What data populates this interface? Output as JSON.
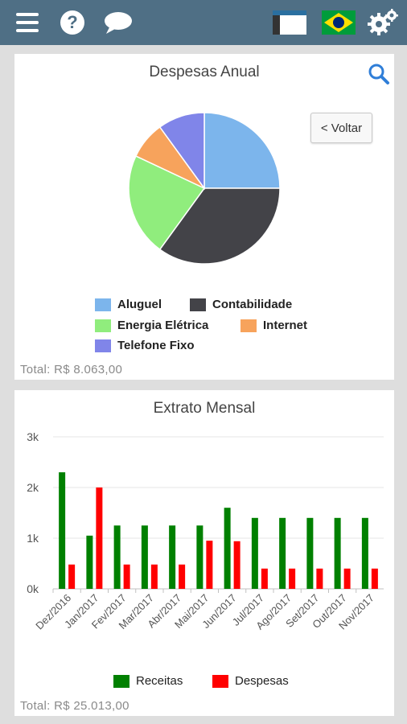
{
  "topbar": {
    "icons": [
      "menu-icon",
      "help-icon",
      "chat-icon",
      "window-icon",
      "brazil-flag-icon",
      "settings-icon"
    ]
  },
  "despesas_card": {
    "title": "Despesas Anual",
    "back_label": "< Voltar",
    "total": "Total: R$ 8.063,00",
    "chart_data": {
      "type": "pie",
      "title": "Despesas Anual",
      "slices": [
        {
          "label": "Aluguel",
          "value": 25,
          "color": "#7cb5ec"
        },
        {
          "label": "Contabilidade",
          "value": 35,
          "color": "#434348"
        },
        {
          "label": "Energia Elétrica",
          "value": 22,
          "color": "#90ed7d"
        },
        {
          "label": "Internet",
          "value": 8,
          "color": "#f7a35c"
        },
        {
          "label": "Telefone Fixo",
          "value": 10,
          "color": "#8085e9"
        }
      ]
    }
  },
  "extrato_card": {
    "title": "Extrato Mensal",
    "total": "Total: R$ 25.013,00",
    "chart_data": {
      "type": "bar",
      "title": "Extrato Mensal",
      "categories": [
        "Dez/2016",
        "Jan/2017",
        "Fev/2017",
        "Mar/2017",
        "Abr/2017",
        "Mai/2017",
        "Jun/2017",
        "Jul/2017",
        "Ago/2017",
        "Set/2017",
        "Out/2017",
        "Nov/2017"
      ],
      "series": [
        {
          "name": "Receitas",
          "color": "#008000",
          "values": [
            2300,
            1050,
            1250,
            1250,
            1250,
            1250,
            1600,
            1400,
            1400,
            1400,
            1400,
            1400
          ]
        },
        {
          "name": "Despesas",
          "color": "#ff0000",
          "values": [
            480,
            2000,
            480,
            480,
            480,
            950,
            940,
            400,
            400,
            400,
            400,
            400
          ]
        }
      ],
      "ylim": [
        0,
        3000
      ],
      "yticks": [
        "0k",
        "1k",
        "2k",
        "3k"
      ],
      "grid": true,
      "legend": "bottom"
    }
  }
}
